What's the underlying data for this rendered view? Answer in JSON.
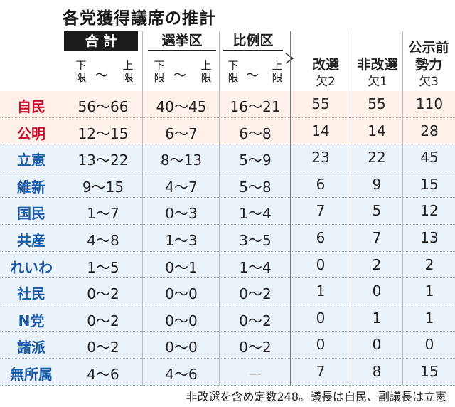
{
  "title": "各党獲得議席の推計",
  "headers": {
    "total": "合 計",
    "district": "選挙区",
    "proportional": "比例区",
    "kaisen": "改選",
    "hikaisen": "非改選",
    "kouji": "公示前勢力",
    "kouji_line1": "公示前",
    "kouji_line2": "勢力"
  },
  "subheaders": {
    "lower": "下限",
    "upper": "上限",
    "tilde": "〜",
    "kaisen_vacancy": "欠2",
    "hikaisen_vacancy": "欠1",
    "kouji_vacancy": "欠3"
  },
  "rows": [
    {
      "party": "自民",
      "color": "red",
      "total_low": "56",
      "total_high": "66",
      "dist_low": "40",
      "dist_high": "45",
      "prop_low": "16",
      "prop_high": "21",
      "kaisen": "55",
      "hikaisen": "55",
      "kouji": "110"
    },
    {
      "party": "公明",
      "color": "red",
      "total_low": "12",
      "total_high": "15",
      "dist_low": "6",
      "dist_high": "7",
      "prop_low": "6",
      "prop_high": "8",
      "kaisen": "14",
      "hikaisen": "14",
      "kouji": "28"
    },
    {
      "party": "立憲",
      "color": "blue",
      "total_low": "13",
      "total_high": "22",
      "dist_low": "8",
      "dist_high": "13",
      "prop_low": "5",
      "prop_high": "9",
      "kaisen": "23",
      "hikaisen": "22",
      "kouji": "45"
    },
    {
      "party": "維新",
      "color": "blue",
      "total_low": "9",
      "total_high": "15",
      "dist_low": "4",
      "dist_high": "7",
      "prop_low": "5",
      "prop_high": "8",
      "kaisen": "6",
      "hikaisen": "9",
      "kouji": "15"
    },
    {
      "party": "国民",
      "color": "blue",
      "total_low": "1",
      "total_high": "7",
      "dist_low": "0",
      "dist_high": "3",
      "prop_low": "1",
      "prop_high": "4",
      "kaisen": "7",
      "hikaisen": "5",
      "kouji": "12"
    },
    {
      "party": "共産",
      "color": "blue",
      "total_low": "4",
      "total_high": "8",
      "dist_low": "1",
      "dist_high": "3",
      "prop_low": "3",
      "prop_high": "5",
      "kaisen": "6",
      "hikaisen": "7",
      "kouji": "13"
    },
    {
      "party": "れいわ",
      "color": "blue",
      "total_low": "1",
      "total_high": "5",
      "dist_low": "0",
      "dist_high": "1",
      "prop_low": "1",
      "prop_high": "4",
      "kaisen": "0",
      "hikaisen": "2",
      "kouji": "2"
    },
    {
      "party": "社民",
      "color": "blue",
      "total_low": "0",
      "total_high": "2",
      "dist_low": "0",
      "dist_high": "0",
      "prop_low": "0",
      "prop_high": "2",
      "kaisen": "1",
      "hikaisen": "0",
      "kouji": "1"
    },
    {
      "party": "N党",
      "color": "blue",
      "total_low": "0",
      "total_high": "2",
      "dist_low": "0",
      "dist_high": "0",
      "prop_low": "0",
      "prop_high": "2",
      "kaisen": "0",
      "hikaisen": "1",
      "kouji": "1"
    },
    {
      "party": "諸派",
      "color": "blue",
      "total_low": "0",
      "total_high": "2",
      "dist_low": "0",
      "dist_high": "0",
      "prop_low": "0",
      "prop_high": "2",
      "kaisen": "0",
      "hikaisen": "0",
      "kouji": "0"
    },
    {
      "party": "無所属",
      "color": "blue",
      "total_low": "4",
      "total_high": "6",
      "dist_low": "4",
      "dist_high": "6",
      "prop_low": "",
      "prop_high": "",
      "prop_dash": "－",
      "kaisen": "7",
      "hikaisen": "8",
      "kouji": "15"
    }
  ],
  "footer": "非改選を含め定数248。議長は自民、副議長は立憲"
}
